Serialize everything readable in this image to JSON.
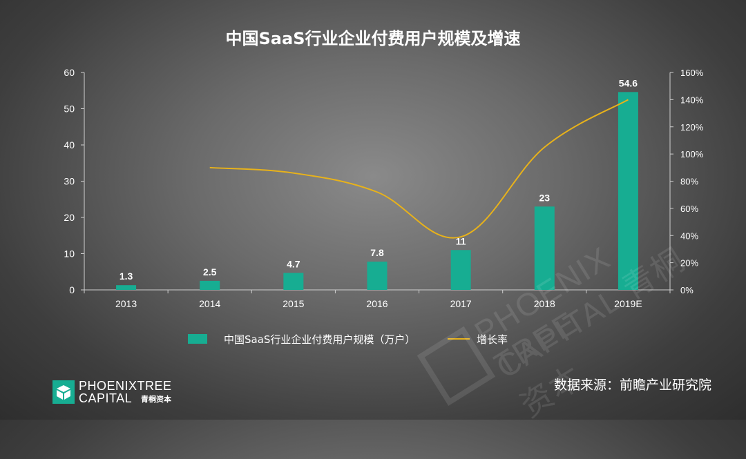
{
  "title": "中国SaaS行业企业付费用户规模及增速",
  "source": "数据来源：前瞻产业研究院",
  "logo": {
    "line1": "PHOENIXTREE",
    "line2": "CAPITAL",
    "cn": "青桐资本"
  },
  "watermark": {
    "line1": "PHOENIX TREE",
    "line2": "CAPITAL 青桐资本"
  },
  "colors": {
    "bar": "#17ad92",
    "line": "#e8b21a",
    "axis": "#d0d0d0",
    "text": "#ffffff"
  },
  "legend": {
    "bar_label": "中国SaaS行业企业付费用户规模（万户）",
    "line_label": "增长率"
  },
  "chart_data": {
    "type": "bar",
    "title": "中国SaaS行业企业付费用户规模及增速",
    "categories": [
      "2013",
      "2014",
      "2015",
      "2016",
      "2017",
      "2018",
      "2019E"
    ],
    "series": [
      {
        "name": "中国SaaS行业企业付费用户规模（万户）",
        "type": "bar",
        "axis": "left",
        "values": [
          1.3,
          2.5,
          4.7,
          7.8,
          11,
          23,
          54.6
        ],
        "data_labels": [
          "1.3",
          "2.5",
          "4.7",
          "7.8",
          "11",
          "23",
          "54.6"
        ]
      },
      {
        "name": "增长率",
        "type": "line",
        "axis": "right",
        "values": [
          null,
          0.9,
          0.86,
          0.72,
          0.39,
          1.05,
          1.4
        ]
      }
    ],
    "y_left": {
      "min": 0,
      "max": 60,
      "ticks": [
        0,
        10,
        20,
        30,
        40,
        50,
        60
      ],
      "tick_labels": [
        "0",
        "10",
        "20",
        "30",
        "40",
        "50",
        "60"
      ]
    },
    "y_right": {
      "min": 0,
      "max": 1.6,
      "ticks": [
        0,
        0.2,
        0.4,
        0.6,
        0.8,
        1.0,
        1.2,
        1.4,
        1.6
      ],
      "tick_labels": [
        "0%",
        "20%",
        "40%",
        "60%",
        "80%",
        "100%",
        "120%",
        "140%",
        "160%"
      ]
    },
    "grid": false,
    "legend_position": "bottom"
  }
}
